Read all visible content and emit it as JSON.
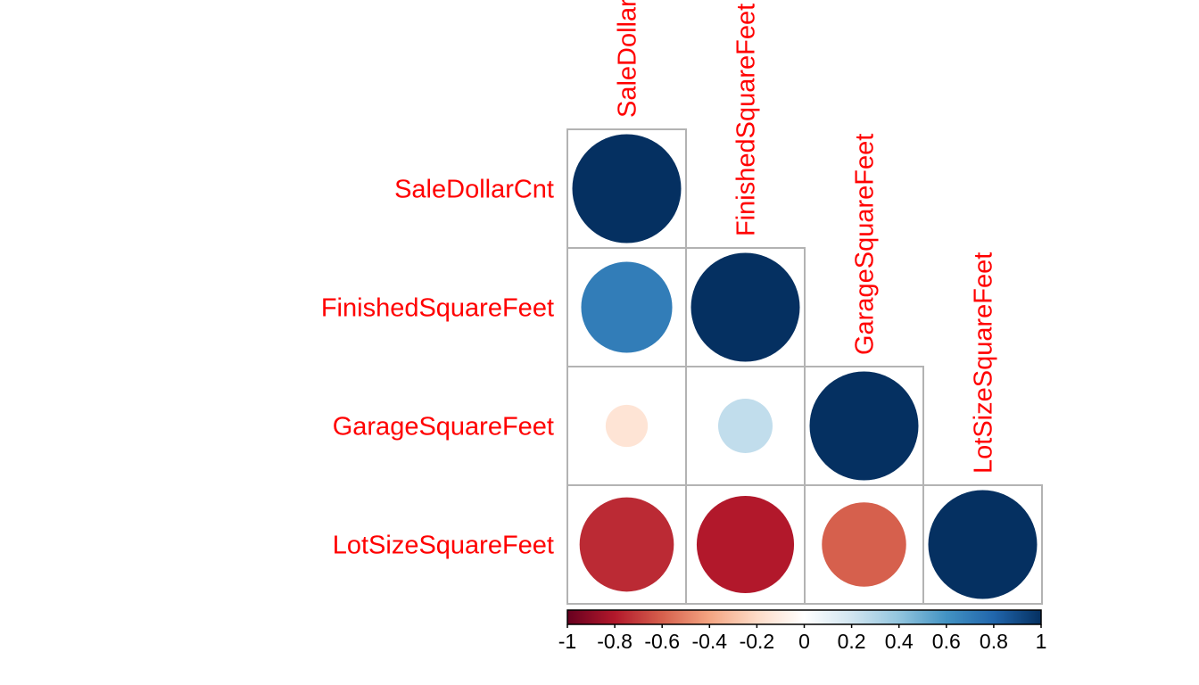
{
  "chart_data": {
    "type": "heatmap",
    "variables": [
      "SaleDollarCnt",
      "FinishedSquareFeet",
      "GarageSquareFeet",
      "LotSizeSquareFeet"
    ],
    "column_labels": [
      "SaleDollarCnt",
      "FinishedSquareFeet",
      "GarageSquareFeet",
      "LotSizeSquareFeet"
    ],
    "row_labels": [
      "SaleDollarCnt",
      "FinishedSquareFeet",
      "GarageSquareFeet",
      "LotSizeSquareFeet"
    ],
    "matrix": [
      [
        1.0,
        null,
        null,
        null
      ],
      [
        0.7,
        1.0,
        null,
        null
      ],
      [
        -0.15,
        0.25,
        1.0,
        null
      ],
      [
        -0.75,
        -0.8,
        -0.6,
        1.0
      ]
    ],
    "layout": "lower-triangle",
    "colorbar": {
      "range": [
        -1,
        1
      ],
      "ticks": [
        "-1",
        "-0.8",
        "-0.6",
        "-0.4",
        "-0.2",
        "0",
        "0.2",
        "0.4",
        "0.6",
        "0.8",
        "1"
      ],
      "colors": [
        "#67001f",
        "#b2182b",
        "#d6604d",
        "#f4a582",
        "#fddbc7",
        "#ffffff",
        "#d1e5f0",
        "#92c5de",
        "#4393c3",
        "#2166ac",
        "#053061"
      ]
    }
  }
}
